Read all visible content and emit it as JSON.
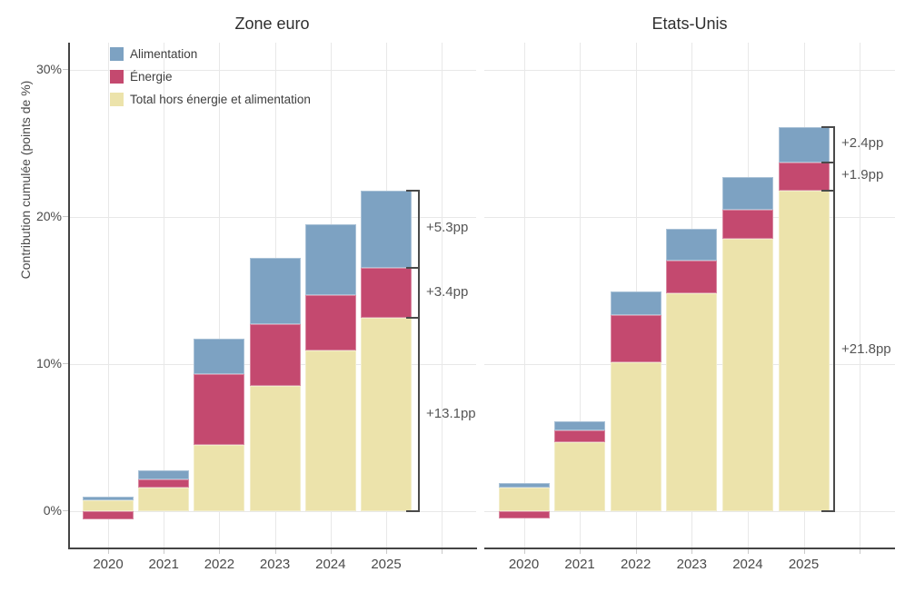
{
  "figure": {
    "y_axis": {
      "title": "Contribution cumulée (points de %)",
      "tick_labels": [
        "0%",
        "10%",
        "20%",
        "30%"
      ],
      "tick_values": [
        0,
        10,
        20,
        30
      ],
      "range": [
        -2.5,
        31.8
      ]
    },
    "x_axis": {
      "categories": [
        "2020",
        "2021",
        "2022",
        "2023",
        "2024",
        "2025"
      ]
    },
    "legend": {
      "position": "top-left-inside",
      "items": [
        {
          "label": "Alimentation",
          "color": "#7da2c2"
        },
        {
          "label": "Énergie",
          "color": "#c4496f"
        },
        {
          "label": "Total hors énergie et alimentation",
          "color": "#ece3ab"
        }
      ]
    },
    "colors": {
      "alimentation": "#7da2c2",
      "energie": "#c4496f",
      "hors": "#ece3ab",
      "grid": "#e8e8e8",
      "axis": "#444444",
      "bracket": "#4a4a4a",
      "annotation_text": "#555555"
    }
  },
  "chart_data": [
    {
      "type": "bar",
      "stacked": true,
      "title": "Zone euro",
      "categories": [
        "2020",
        "2021",
        "2022",
        "2023",
        "2024",
        "2025"
      ],
      "series": [
        {
          "name": "Total hors énergie et alimentation",
          "key": "hors",
          "values": [
            0.7,
            1.6,
            4.5,
            8.5,
            10.9,
            13.1
          ]
        },
        {
          "name": "Énergie",
          "key": "energie",
          "values": [
            -0.6,
            0.55,
            4.8,
            4.2,
            3.8,
            3.4
          ]
        },
        {
          "name": "Alimentation",
          "key": "alimentation",
          "values": [
            0.25,
            0.6,
            2.4,
            4.5,
            4.8,
            5.3
          ]
        }
      ],
      "annotations": [
        {
          "label": "+5.3pp",
          "from": 16.5,
          "to": 21.8
        },
        {
          "label": "+3.4pp",
          "from": 13.1,
          "to": 16.5
        },
        {
          "label": "+13.1pp",
          "from": 0,
          "to": 13.1
        }
      ],
      "ylabel": "Contribution cumulée (points de %)",
      "ylim": [
        -2.5,
        31.8
      ],
      "grid": true
    },
    {
      "type": "bar",
      "stacked": true,
      "title": "Etats-Unis",
      "categories": [
        "2020",
        "2021",
        "2022",
        "2023",
        "2024",
        "2025"
      ],
      "series": [
        {
          "name": "Total hors énergie et alimentation",
          "key": "hors",
          "values": [
            1.6,
            4.7,
            10.1,
            14.8,
            18.5,
            21.8
          ]
        },
        {
          "name": "Énergie",
          "key": "energie",
          "values": [
            -0.5,
            0.8,
            3.2,
            2.2,
            2.0,
            1.9
          ]
        },
        {
          "name": "Alimentation",
          "key": "alimentation",
          "values": [
            0.3,
            0.6,
            1.6,
            2.2,
            2.2,
            2.4
          ]
        }
      ],
      "annotations": [
        {
          "label": "+2.4pp",
          "from": 23.7,
          "to": 26.1
        },
        {
          "label": "+1.9pp",
          "from": 21.8,
          "to": 23.7
        },
        {
          "label": "+21.8pp",
          "from": 0,
          "to": 21.8
        }
      ],
      "ylabel": "",
      "ylim": [
        -2.5,
        31.8
      ],
      "grid": true
    }
  ]
}
